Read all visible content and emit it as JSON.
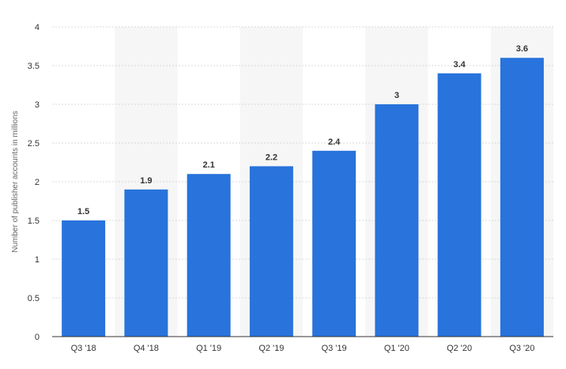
{
  "chart_data": {
    "type": "bar",
    "categories": [
      "Q3 '18",
      "Q4 '18",
      "Q1 '19",
      "Q2 '19",
      "Q3 '19",
      "Q1 '20",
      "Q2 '20",
      "Q3 '20"
    ],
    "values": [
      1.5,
      1.9,
      2.1,
      2.2,
      2.4,
      3,
      3.4,
      3.6
    ],
    "value_labels": [
      "1.5",
      "1.9",
      "2.1",
      "2.2",
      "2.4",
      "3",
      "3.4",
      "3.6"
    ],
    "ylabel": "Number of publisher accounts in millions",
    "ylim": [
      0,
      4
    ],
    "yticks": [
      "0",
      "0.5",
      "1",
      "1.5",
      "2",
      "2.5",
      "3",
      "3.5",
      "4"
    ],
    "grid": true,
    "colors": {
      "bar": "#2873dc",
      "band": "#f6f6f6",
      "grid": "#d8d8d8",
      "axis": "#333333"
    }
  }
}
